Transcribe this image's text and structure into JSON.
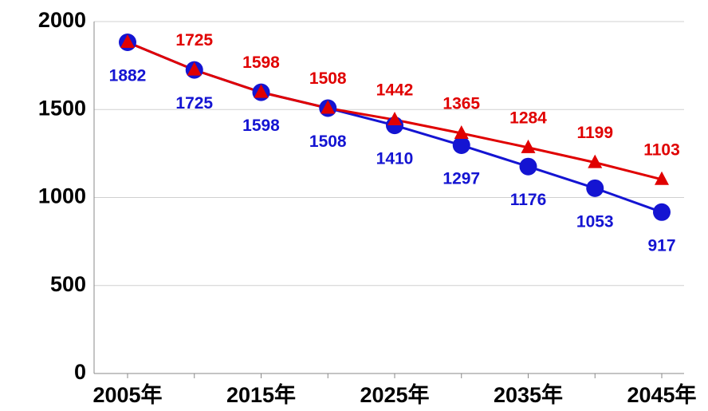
{
  "chart_data": {
    "type": "line",
    "categories": [
      "2005年",
      null,
      "2015年",
      null,
      "2025年",
      null,
      "2035年",
      null,
      "2045年"
    ],
    "series": [
      {
        "color": "#1414d2",
        "marker": "circle",
        "label_position": "below",
        "values": [
          1882,
          1725,
          1598,
          1508,
          1410,
          1297,
          1176,
          1053,
          917
        ]
      },
      {
        "color": "#e00000",
        "marker": "triangle",
        "label_position": "above",
        "values": [
          1882,
          1725,
          1598,
          1508,
          1442,
          1365,
          1284,
          1199,
          1103
        ],
        "value_labels": [
          null,
          "1725",
          "1598",
          "1508",
          "1442",
          "1365",
          "1284",
          "1199",
          "1103"
        ]
      }
    ],
    "ylim": [
      0,
      2000
    ],
    "yticks": [
      0,
      500,
      1000,
      1500,
      2000
    ],
    "grid": true
  }
}
